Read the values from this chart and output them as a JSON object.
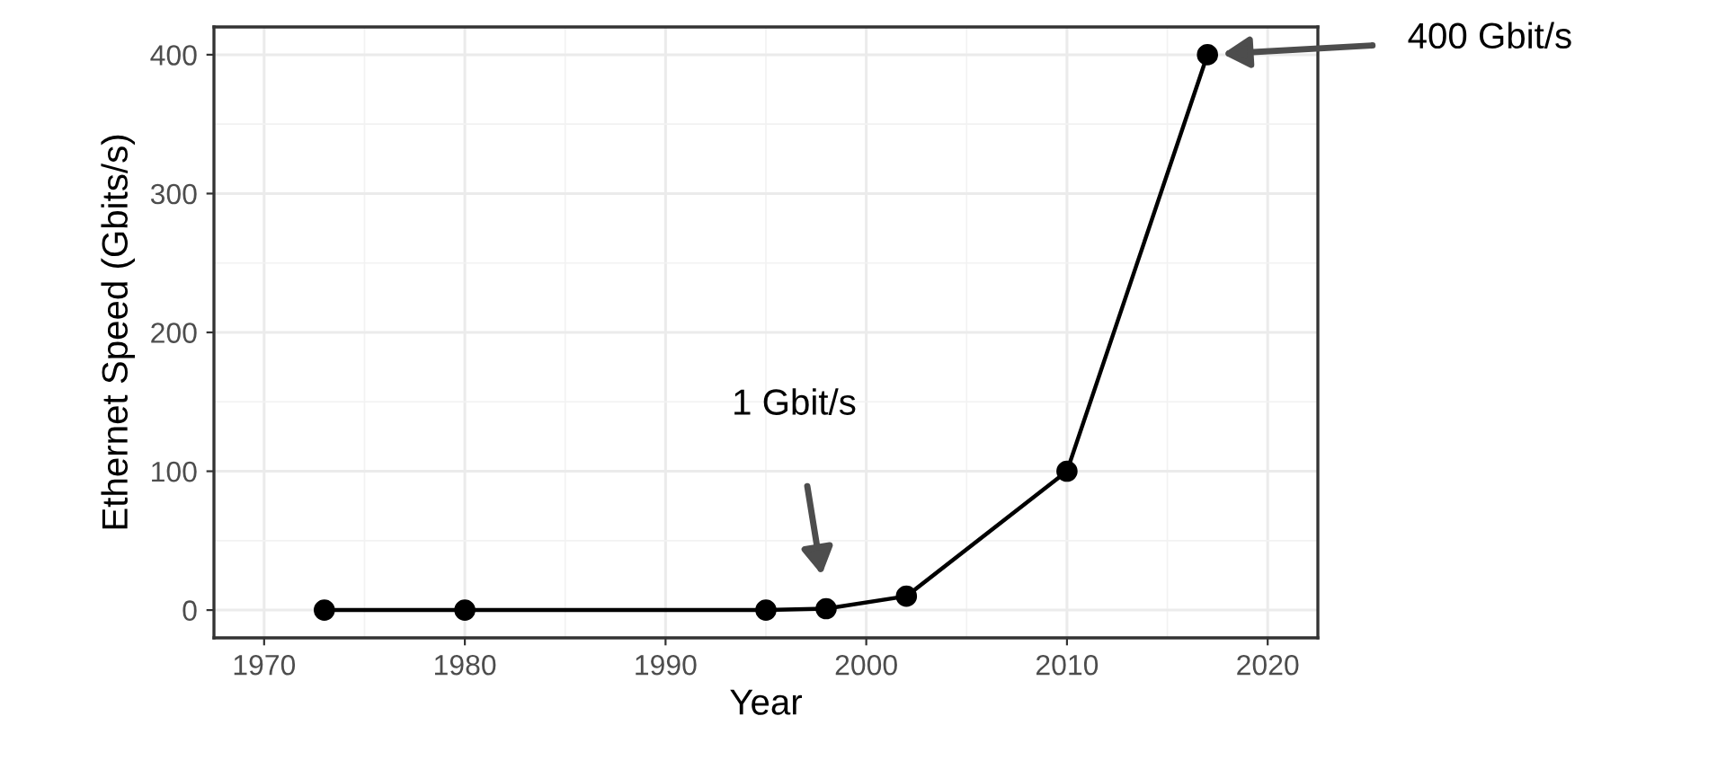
{
  "chart_data": {
    "type": "line",
    "xlabel": "Year",
    "ylabel": "Ethernet Speed (Gbits/s)",
    "x": [
      1973,
      1980,
      1995,
      1998,
      2002,
      2010,
      2017
    ],
    "series": [
      {
        "color": "#000000",
        "values": [
          0,
          0,
          0,
          1,
          10,
          100,
          400
        ]
      }
    ],
    "marker": "circle",
    "line_style": "solid",
    "xlim": [
      1967.5,
      2022.5
    ],
    "xticks": [
      1970,
      1980,
      1990,
      2000,
      2010,
      2020
    ],
    "ylim": [
      -20,
      420
    ],
    "yticks": [
      0,
      100,
      200,
      300,
      400
    ],
    "grid": true,
    "annotations": [
      "1 Gbit/s",
      "400 Gbit/s"
    ]
  }
}
